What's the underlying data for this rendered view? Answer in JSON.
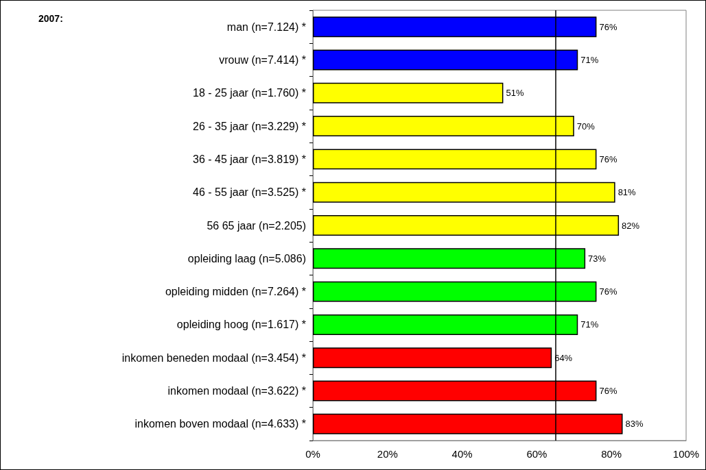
{
  "chart_data": {
    "type": "bar",
    "orientation": "horizontal",
    "title": "2007:",
    "categories": [
      "man (n=7.124) *",
      "vrouw (n=7.414) *",
      "18 - 25 jaar (n=1.760) *",
      "26 - 35 jaar (n=3.229) *",
      "36 - 45 jaar (n=3.819) *",
      "46 - 55 jaar (n=3.525) *",
      "56 65 jaar (n=2.205)",
      "opleiding laag (n=5.086)",
      "opleiding midden (n=7.264) *",
      "opleiding hoog (n=1.617) *",
      "inkomen beneden modaal (n=3.454) *",
      "inkomen modaal (n=3.622) *",
      "inkomen boven modaal (n=4.633) *"
    ],
    "values": [
      76,
      71,
      51,
      70,
      76,
      81,
      82,
      73,
      76,
      71,
      64,
      76,
      83
    ],
    "value_labels": [
      "76%",
      "71%",
      "51%",
      "70%",
      "76%",
      "81%",
      "82%",
      "73%",
      "76%",
      "71%",
      "64%",
      "76%",
      "83%"
    ],
    "colors": [
      "#0000ff",
      "#0000ff",
      "#ffff00",
      "#ffff00",
      "#ffff00",
      "#ffff00",
      "#ffff00",
      "#00ff00",
      "#00ff00",
      "#00ff00",
      "#ff0000",
      "#ff0000",
      "#ff0000"
    ],
    "xlim": [
      0,
      100
    ],
    "xticks": [
      {
        "value": 0,
        "label": "0%"
      },
      {
        "value": 20,
        "label": "20%"
      },
      {
        "value": 40,
        "label": "40%"
      },
      {
        "value": 60,
        "label": "60%"
      },
      {
        "value": 80,
        "label": "80%"
      },
      {
        "value": 100,
        "label": "100%"
      }
    ],
    "ref_lines": [
      {
        "axis": "x",
        "value": 65,
        "label": null,
        "color": "#000000"
      }
    ],
    "grid": false
  }
}
